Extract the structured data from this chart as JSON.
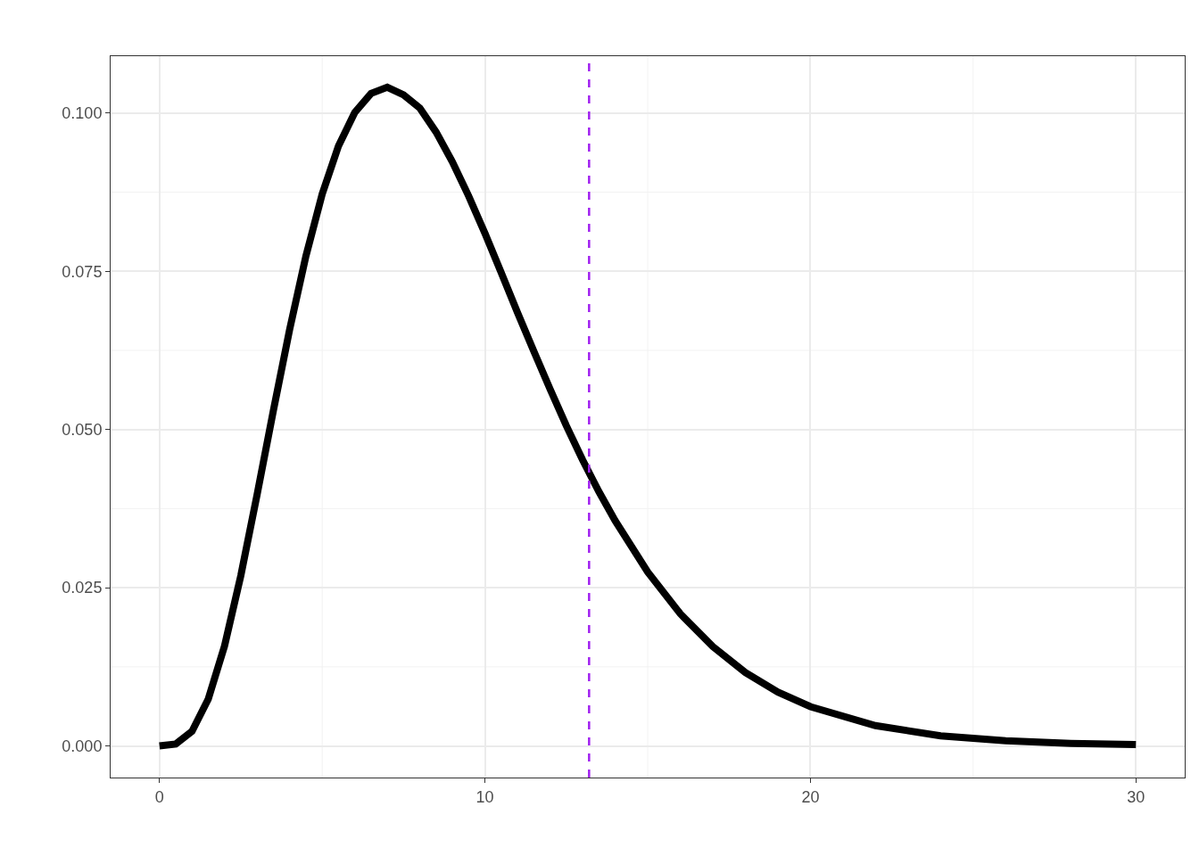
{
  "chart_data": {
    "type": "line",
    "x": [
      0,
      0.5,
      1,
      1.5,
      2,
      2.5,
      3,
      3.5,
      4,
      4.5,
      5,
      5.5,
      6,
      6.5,
      7,
      7.5,
      8,
      8.5,
      9,
      9.5,
      10,
      10.5,
      11,
      11.5,
      12,
      12.5,
      13,
      13.5,
      14,
      15,
      16,
      17,
      18,
      19,
      20,
      22,
      24,
      26,
      28,
      30
    ],
    "series": [
      {
        "color": "#000000",
        "values": [
          0,
          0.0003,
          0.0023,
          0.0074,
          0.0158,
          0.0269,
          0.0397,
          0.053,
          0.0658,
          0.0774,
          0.0872,
          0.0948,
          0.1001,
          0.1031,
          0.1041,
          0.1029,
          0.1008,
          0.097,
          0.0923,
          0.0869,
          0.081,
          0.0748,
          0.0685,
          0.0624,
          0.0564,
          0.0506,
          0.0452,
          0.0402,
          0.0356,
          0.0275,
          0.0209,
          0.0157,
          0.0116,
          0.0085,
          0.0062,
          0.0032,
          0.0016,
          0.0008,
          0.0004,
          0.0002
        ]
      }
    ],
    "xlim": [
      -1.5,
      31.5
    ],
    "xticks": [
      0,
      10,
      20,
      30
    ],
    "ylim": [
      -0.005,
      0.109
    ],
    "yticks": [
      {
        "value": 0,
        "label": "0.000"
      },
      {
        "value": 0.025,
        "label": "0.025"
      },
      {
        "value": 0.05,
        "label": "0.050"
      },
      {
        "value": 0.075,
        "label": "0.075"
      },
      {
        "value": 0.1,
        "label": "0.100"
      }
    ],
    "ref_lines": [
      {
        "axis": "x",
        "value": 13.2,
        "color": "#a020f0",
        "line_style": "dashed"
      }
    ],
    "grid": true
  }
}
